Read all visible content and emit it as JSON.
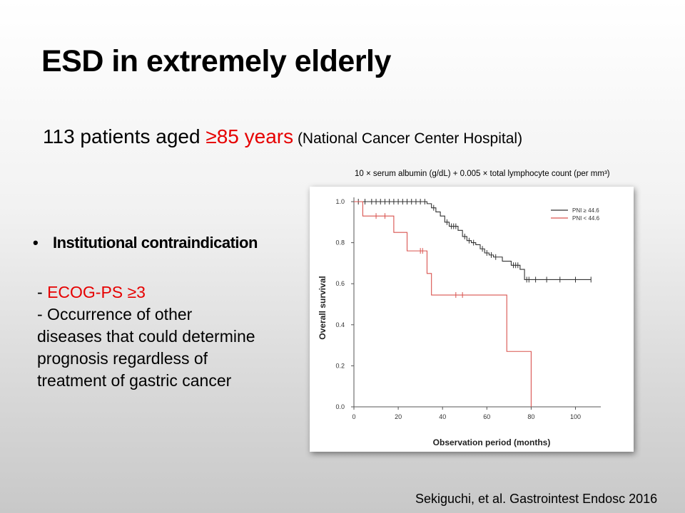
{
  "slide": {
    "title": "ESD in extremely elderly",
    "subtitle": {
      "part1": "113 patients aged ",
      "part2": "≥85 years",
      "part3": " (National  Cancer  Center  Hospital)"
    },
    "formula": "10 × serum albumin (g/dL) + 0.005 × total lymphocyte count (per mm³)",
    "bullet": "Institutional contraindication",
    "criteria": {
      "line1_prefix": "- ",
      "line1_red": "ECOG-PS  ≥3",
      "line2": "- Occurrence  of other",
      "line3": "diseases that could determine",
      "line4": "prognosis regardless of",
      "line5": "treatment of gastric cancer"
    },
    "citation": "Sekiguchi, et al. Gastrointest Endosc 2016"
  },
  "chart_data": {
    "type": "line",
    "subtype": "kaplan-meier",
    "xlabel": "Observation period (months)",
    "ylabel": "Overall survival",
    "xlim": [
      0,
      110
    ],
    "ylim": [
      0,
      1
    ],
    "xticks": [
      0,
      20,
      40,
      60,
      80,
      100
    ],
    "yticks": [
      "0.0",
      "0.2",
      "0.4",
      "0.6",
      "0.8",
      "1.0"
    ],
    "legend_position": "top-right",
    "series": [
      {
        "name": "PNI ≥ 44.6",
        "color": "#333333",
        "steps": [
          [
            0,
            1.0
          ],
          [
            33,
            0.99
          ],
          [
            35,
            0.97
          ],
          [
            37,
            0.95
          ],
          [
            39,
            0.93
          ],
          [
            41,
            0.9
          ],
          [
            43,
            0.88
          ],
          [
            47,
            0.86
          ],
          [
            49,
            0.83
          ],
          [
            51,
            0.81
          ],
          [
            53,
            0.8
          ],
          [
            55,
            0.79
          ],
          [
            57,
            0.77
          ],
          [
            59,
            0.75
          ],
          [
            61,
            0.74
          ],
          [
            63,
            0.73
          ],
          [
            67,
            0.71
          ],
          [
            71,
            0.69
          ],
          [
            75,
            0.67
          ],
          [
            77,
            0.62
          ],
          [
            107,
            0.62
          ]
        ],
        "censored": [
          [
            2,
            1.0
          ],
          [
            5,
            1.0
          ],
          [
            8,
            1.0
          ],
          [
            10,
            1.0
          ],
          [
            12,
            1.0
          ],
          [
            14,
            1.0
          ],
          [
            16,
            1.0
          ],
          [
            18,
            1.0
          ],
          [
            20,
            1.0
          ],
          [
            22,
            1.0
          ],
          [
            24,
            1.0
          ],
          [
            26,
            1.0
          ],
          [
            28,
            1.0
          ],
          [
            30,
            1.0
          ],
          [
            32,
            1.0
          ],
          [
            36,
            0.97
          ],
          [
            42,
            0.9
          ],
          [
            44,
            0.88
          ],
          [
            45,
            0.88
          ],
          [
            46,
            0.88
          ],
          [
            50,
            0.83
          ],
          [
            52,
            0.81
          ],
          [
            54,
            0.8
          ],
          [
            58,
            0.77
          ],
          [
            60,
            0.75
          ],
          [
            62,
            0.74
          ],
          [
            64,
            0.73
          ],
          [
            72,
            0.69
          ],
          [
            73,
            0.69
          ],
          [
            74,
            0.69
          ],
          [
            78,
            0.62
          ],
          [
            79,
            0.62
          ],
          [
            82,
            0.62
          ],
          [
            87,
            0.62
          ],
          [
            93,
            0.62
          ],
          [
            100,
            0.62
          ],
          [
            107,
            0.62
          ]
        ]
      },
      {
        "name": "PNI < 44.6",
        "color": "#d9534f",
        "steps": [
          [
            0,
            1.0
          ],
          [
            4,
            0.93
          ],
          [
            18,
            0.85
          ],
          [
            24,
            0.76
          ],
          [
            31,
            0.76
          ],
          [
            33,
            0.65
          ],
          [
            35,
            0.545
          ],
          [
            69,
            0.545
          ],
          [
            69,
            0.27
          ],
          [
            80,
            0.27
          ],
          [
            80,
            0.0
          ]
        ],
        "censored": [
          [
            10,
            0.93
          ],
          [
            14,
            0.93
          ],
          [
            30,
            0.76
          ],
          [
            31,
            0.76
          ],
          [
            46,
            0.545
          ],
          [
            49,
            0.545
          ]
        ]
      }
    ]
  }
}
